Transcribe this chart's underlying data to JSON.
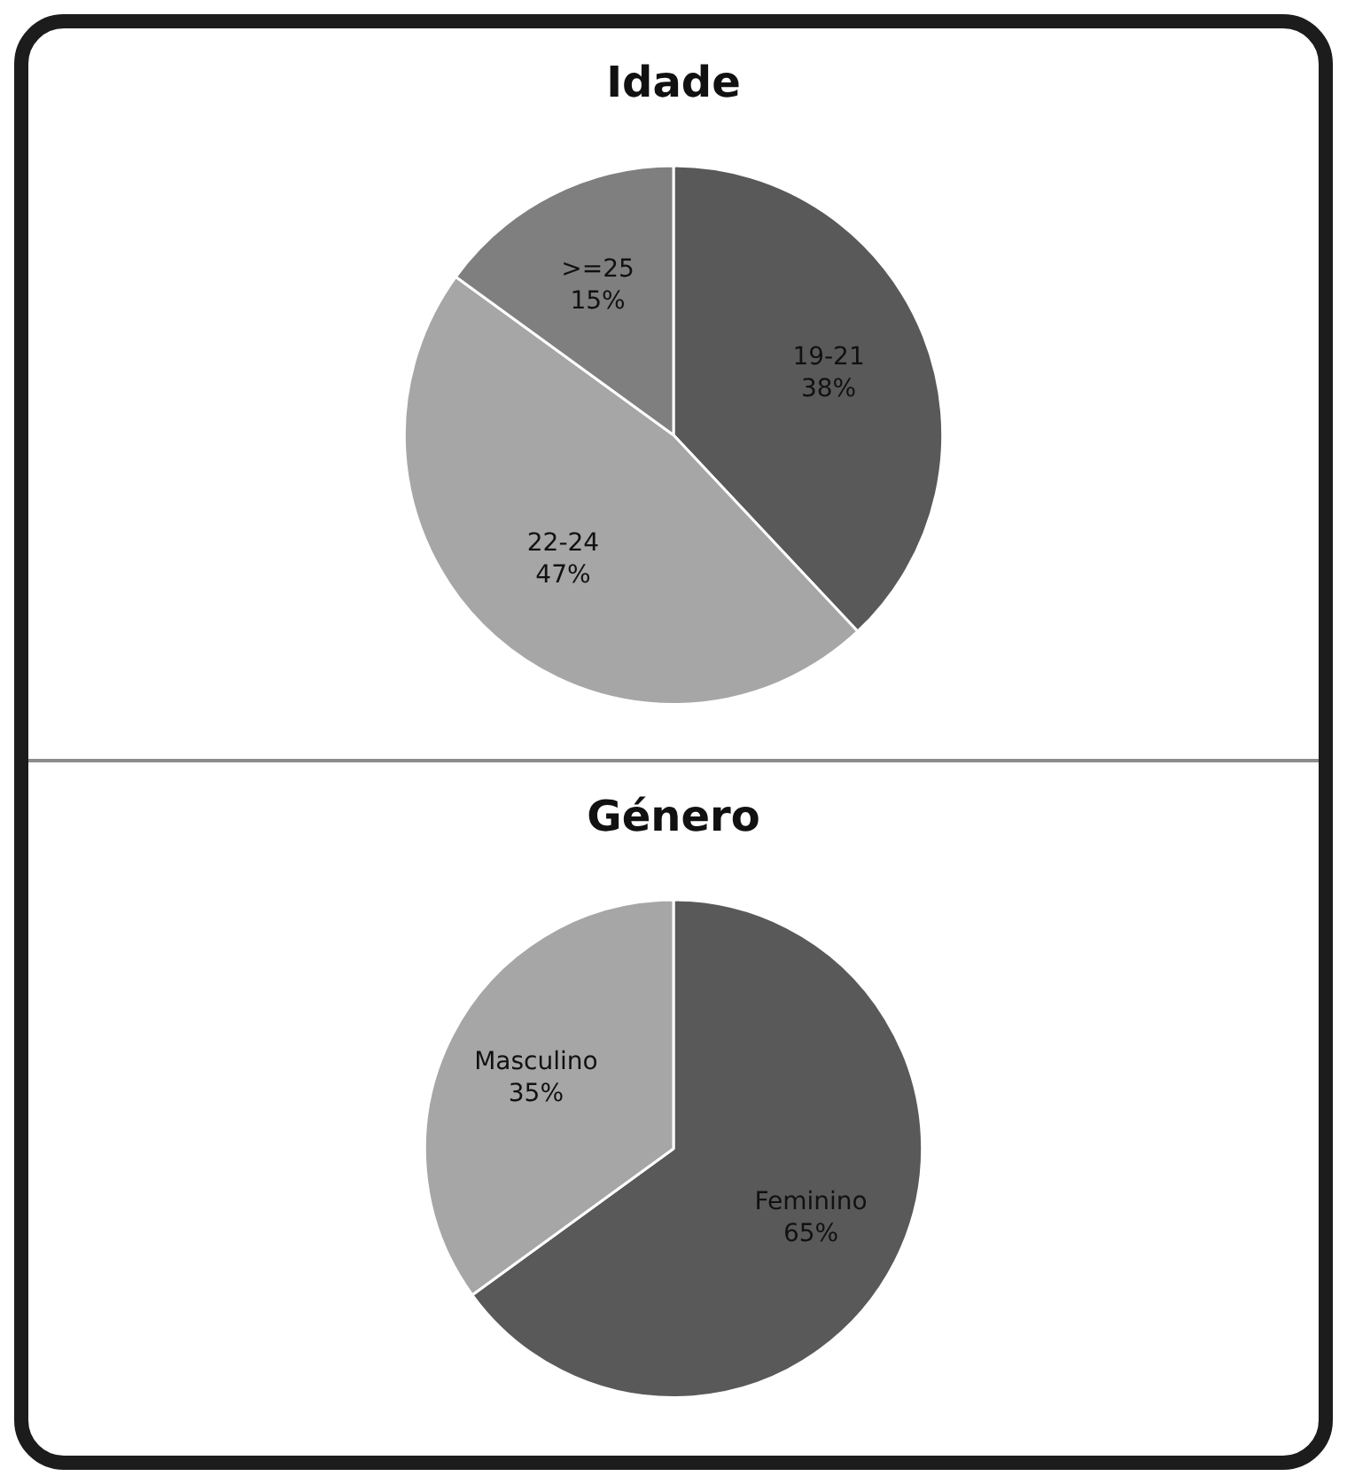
{
  "chart_data": [
    {
      "type": "pie",
      "title": "Idade",
      "categories": [
        "19-21",
        "22-24",
        ">=25"
      ],
      "values": [
        38,
        47,
        15
      ],
      "colors": [
        "#595959",
        "#a6a6a6",
        "#7f7f7f"
      ],
      "value_labels": [
        "38%",
        "47%",
        "15%"
      ]
    },
    {
      "type": "pie",
      "title": "Género",
      "categories": [
        "Feminino",
        "Masculino"
      ],
      "values": [
        65,
        35
      ],
      "colors": [
        "#595959",
        "#a6a6a6"
      ],
      "value_labels": [
        "65%",
        "35%"
      ]
    }
  ]
}
